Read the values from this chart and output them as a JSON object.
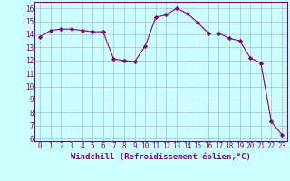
{
  "x": [
    0,
    1,
    2,
    3,
    4,
    5,
    6,
    7,
    8,
    9,
    10,
    11,
    12,
    13,
    14,
    15,
    16,
    17,
    18,
    19,
    20,
    21,
    22,
    23
  ],
  "y": [
    13.8,
    14.3,
    14.4,
    14.4,
    14.3,
    14.2,
    14.2,
    12.1,
    12.0,
    11.9,
    13.1,
    15.3,
    15.5,
    16.0,
    15.6,
    14.9,
    14.1,
    14.1,
    13.7,
    13.5,
    12.2,
    11.8,
    7.3,
    6.3
  ],
  "line_color": "#800080",
  "marker": "D",
  "marker_size": 2.2,
  "bg_color": "#ccffff",
  "grid_color": "#aabbbb",
  "xlabel": "Windchill (Refroidissement éolien,°C)",
  "xlim": [
    -0.5,
    23.5
  ],
  "ylim": [
    5.8,
    16.5
  ],
  "yticks": [
    6,
    7,
    8,
    9,
    10,
    11,
    12,
    13,
    14,
    15,
    16
  ],
  "xticks": [
    0,
    1,
    2,
    3,
    4,
    5,
    6,
    7,
    8,
    9,
    10,
    11,
    12,
    13,
    14,
    15,
    16,
    17,
    18,
    19,
    20,
    21,
    22,
    23
  ],
  "tick_fontsize": 5.5,
  "label_fontsize": 6.5
}
